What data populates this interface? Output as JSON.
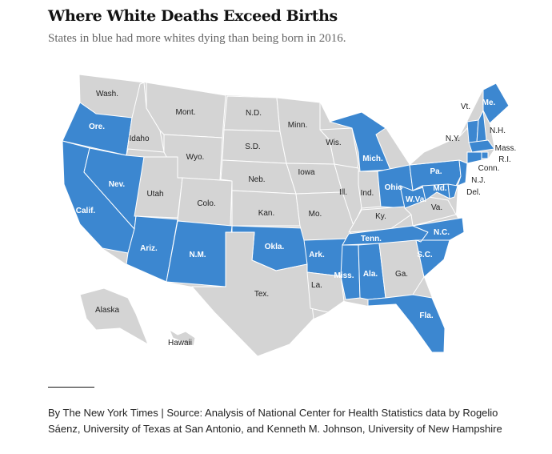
{
  "title": "Where White Deaths Exceed Births",
  "subtitle": "States in blue had more whites dying than being born in 2016.",
  "colors": {
    "highlight": "#3c87d0",
    "base": "#d4d4d4",
    "border": "#ffffff"
  },
  "legend": {
    "highlight_meaning": "more whites dying than being born in 2016"
  },
  "states": [
    {
      "label": "Wash.",
      "highlighted": false
    },
    {
      "label": "Ore.",
      "highlighted": true
    },
    {
      "label": "Calif.",
      "highlighted": true
    },
    {
      "label": "Idaho",
      "highlighted": false
    },
    {
      "label": "Nev.",
      "highlighted": true
    },
    {
      "label": "Mont.",
      "highlighted": false
    },
    {
      "label": "Wyo.",
      "highlighted": false
    },
    {
      "label": "Utah",
      "highlighted": false
    },
    {
      "label": "Colo.",
      "highlighted": false
    },
    {
      "label": "Ariz.",
      "highlighted": true
    },
    {
      "label": "N.M.",
      "highlighted": true
    },
    {
      "label": "N.D.",
      "highlighted": false
    },
    {
      "label": "S.D.",
      "highlighted": false
    },
    {
      "label": "Neb.",
      "highlighted": false
    },
    {
      "label": "Kan.",
      "highlighted": false
    },
    {
      "label": "Okla.",
      "highlighted": true
    },
    {
      "label": "Tex.",
      "highlighted": false
    },
    {
      "label": "Minn.",
      "highlighted": false
    },
    {
      "label": "Iowa",
      "highlighted": false
    },
    {
      "label": "Mo.",
      "highlighted": false
    },
    {
      "label": "Ark.",
      "highlighted": true
    },
    {
      "label": "La.",
      "highlighted": false
    },
    {
      "label": "Wis.",
      "highlighted": false
    },
    {
      "label": "Ill.",
      "highlighted": false
    },
    {
      "label": "Mich.",
      "highlighted": true
    },
    {
      "label": "Ind.",
      "highlighted": false
    },
    {
      "label": "Ohio",
      "highlighted": true
    },
    {
      "label": "Ky.",
      "highlighted": false
    },
    {
      "label": "Tenn.",
      "highlighted": true
    },
    {
      "label": "Miss.",
      "highlighted": true
    },
    {
      "label": "Ala.",
      "highlighted": true
    },
    {
      "label": "Ga.",
      "highlighted": false
    },
    {
      "label": "Fla.",
      "highlighted": true
    },
    {
      "label": "S.C.",
      "highlighted": true
    },
    {
      "label": "N.C.",
      "highlighted": true
    },
    {
      "label": "Va.",
      "highlighted": false
    },
    {
      "label": "W.Va.",
      "highlighted": true
    },
    {
      "label": "Pa.",
      "highlighted": true
    },
    {
      "label": "N.Y.",
      "highlighted": false
    },
    {
      "label": "Vt.",
      "highlighted": true
    },
    {
      "label": "N.H.",
      "highlighted": true
    },
    {
      "label": "Me.",
      "highlighted": true
    },
    {
      "label": "Mass.",
      "highlighted": true
    },
    {
      "label": "R.I.",
      "highlighted": true
    },
    {
      "label": "Conn.",
      "highlighted": true
    },
    {
      "label": "N.J.",
      "highlighted": true
    },
    {
      "label": "Del.",
      "highlighted": true
    },
    {
      "label": "Md.",
      "highlighted": true
    },
    {
      "label": "Alaska",
      "highlighted": false
    },
    {
      "label": "Hawaii",
      "highlighted": false
    }
  ],
  "credit": "By The New York Times | Source: Analysis of National Center for Health Statistics data by Rogelio Sáenz, University of Texas at San Antonio, and Kenneth M. Johnson, University of New Hampshire"
}
